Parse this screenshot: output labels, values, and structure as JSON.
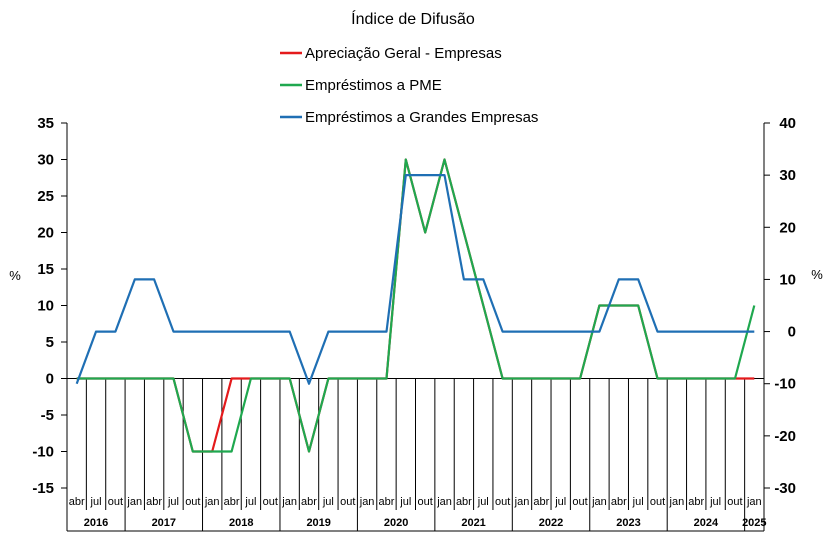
{
  "chart_data": {
    "type": "line",
    "title": "Índice de Difusão",
    "ylabel": "%",
    "y2label": "%",
    "ylim": [
      -15,
      35
    ],
    "y2lim": [
      -30,
      40
    ],
    "yticks": [
      35,
      30,
      25,
      20,
      15,
      10,
      5,
      0,
      -5,
      -10,
      -15
    ],
    "y2ticks": [
      40,
      30,
      20,
      10,
      0,
      -10,
      -20,
      -30
    ],
    "quarter_labels": [
      "abr",
      "jul",
      "out",
      "jan",
      "abr",
      "jul",
      "out",
      "jan",
      "abr",
      "jul",
      "out",
      "jan",
      "abr",
      "jul",
      "out",
      "jan",
      "abr",
      "jul",
      "out",
      "jan",
      "abr",
      "jul",
      "out",
      "jan",
      "abr",
      "jul",
      "out",
      "jan",
      "abr",
      "jul",
      "out",
      "jan",
      "abr",
      "jul",
      "out",
      "jan"
    ],
    "year_labels": [
      "2016",
      "2017",
      "2018",
      "2019",
      "2020",
      "2021",
      "2022",
      "2023",
      "2024",
      "2025"
    ],
    "legend_position": "top",
    "grid": false,
    "series": [
      {
        "name": "Apreciação Geral - Empresas",
        "axis": "left",
        "color": "#e41a1c",
        "values": [
          0,
          0,
          0,
          0,
          0,
          0,
          -10,
          -10,
          0,
          0,
          0,
          0,
          -10,
          0,
          0,
          0,
          0,
          30,
          20,
          30,
          20,
          10,
          0,
          0,
          0,
          0,
          0,
          10,
          10,
          10,
          0,
          0,
          0,
          0,
          0,
          0
        ]
      },
      {
        "name": "Empréstimos a PME",
        "axis": "left",
        "color": "#1fa84f",
        "values": [
          0,
          0,
          0,
          0,
          0,
          0,
          -10,
          -10,
          -10,
          0,
          0,
          0,
          -10,
          0,
          0,
          0,
          0,
          30,
          20,
          30,
          20,
          10,
          0,
          0,
          0,
          0,
          0,
          10,
          10,
          10,
          0,
          0,
          0,
          0,
          0,
          10
        ]
      },
      {
        "name": "Empréstimos a Grandes Empresas",
        "axis": "right",
        "color": "#1f6fb4",
        "values": [
          -10,
          0,
          0,
          10,
          10,
          0,
          0,
          0,
          0,
          0,
          0,
          0,
          -10,
          0,
          0,
          0,
          0,
          30,
          30,
          30,
          10,
          10,
          0,
          0,
          0,
          0,
          0,
          0,
          10,
          10,
          0,
          0,
          0,
          0,
          0,
          0
        ]
      }
    ]
  }
}
